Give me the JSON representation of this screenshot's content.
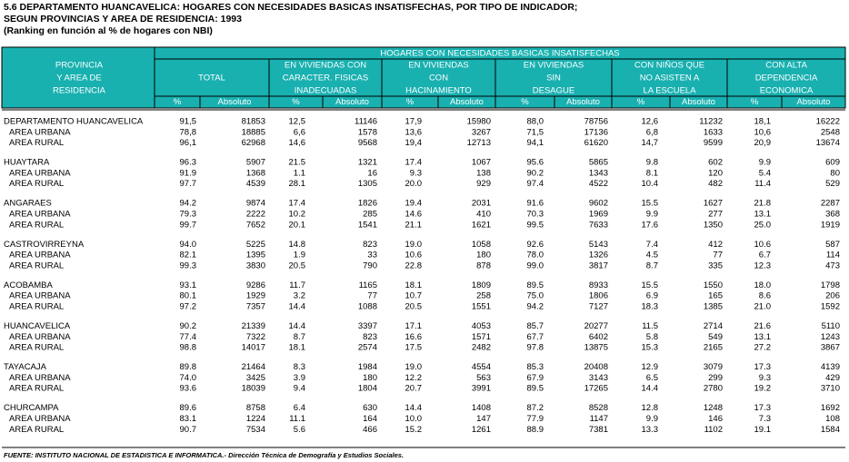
{
  "title": [
    "5.6  DEPARTAMENTO HUANCAVELICA:  HOGARES CON NECESIDADES BASICAS INSATISFECHAS, POR TIPO DE INDICADOR;",
    "SEGUN PROVINCIAS Y AREA DE RESIDENCIA: 1993",
    "(Ranking en función al % de hogares con NBI)"
  ],
  "header": {
    "stub": [
      "PROVINCIA",
      "Y AREA DE",
      "RESIDENCIA"
    ],
    "span": "HOGARES CON NECESIDADES BASICAS INSATISFECHAS",
    "groups": [
      [
        "TOTAL"
      ],
      [
        "EN VIVIENDAS CON",
        "CARACTER. FISICAS",
        "INADECUADAS"
      ],
      [
        "EN VIVIENDAS",
        "CON",
        "HACINAMIENTO"
      ],
      [
        "EN VIVIENDAS",
        "SIN",
        "DESAGUE"
      ],
      [
        "CON NIÑOS QUE",
        "NO ASISTEN A",
        "LA ESCUELA"
      ],
      [
        "CON ALTA",
        "DEPENDENCIA",
        "ECONOMICA"
      ]
    ],
    "sub": [
      "%",
      "Absoluto"
    ]
  },
  "table": {
    "sections": [
      {
        "rows": [
          {
            "label": "DEPARTAMENTO HUANCAVELICA",
            "cells": [
              "91,5",
              "81853",
              "12,5",
              "11146",
              "17,9",
              "15980",
              "88,0",
              "78756",
              "12,6",
              "11232",
              "18,1",
              "16222"
            ]
          },
          {
            "label": "AREA URBANA",
            "cells": [
              "78,8",
              "18885",
              "6,6",
              "1578",
              "13,6",
              "3267",
              "71,5",
              "17136",
              "6,8",
              "1633",
              "10,6",
              "2548"
            ]
          },
          {
            "label": "AREA RURAL",
            "cells": [
              "96,1",
              "62968",
              "14,6",
              "9568",
              "19,4",
              "12713",
              "94,1",
              "61620",
              "14,7",
              "9599",
              "20,9",
              "13674"
            ]
          }
        ]
      },
      {
        "rows": [
          {
            "label": "HUAYTARA",
            "cells": [
              "96.3",
              "5907",
              "21.5",
              "1321",
              "17.4",
              "1067",
              "95.6",
              "5865",
              "9.8",
              "602",
              "9.9",
              "609"
            ]
          },
          {
            "label": "AREA URBANA",
            "cells": [
              "91.9",
              "1368",
              "1.1",
              "16",
              "9.3",
              "138",
              "90.2",
              "1343",
              "8.1",
              "120",
              "5.4",
              "80"
            ]
          },
          {
            "label": "AREA RURAL",
            "cells": [
              "97.7",
              "4539",
              "28.1",
              "1305",
              "20.0",
              "929",
              "97.4",
              "4522",
              "10.4",
              "482",
              "11.4",
              "529"
            ]
          }
        ]
      },
      {
        "rows": [
          {
            "label": "ANGARAES",
            "cells": [
              "94.2",
              "9874",
              "17.4",
              "1826",
              "19.4",
              "2031",
              "91.6",
              "9602",
              "15.5",
              "1627",
              "21.8",
              "2287"
            ]
          },
          {
            "label": "AREA URBANA",
            "cells": [
              "79.3",
              "2222",
              "10.2",
              "285",
              "14.6",
              "410",
              "70.3",
              "1969",
              "9.9",
              "277",
              "13.1",
              "368"
            ]
          },
          {
            "label": "AREA RURAL",
            "cells": [
              "99.7",
              "7652",
              "20.1",
              "1541",
              "21.1",
              "1621",
              "99.5",
              "7633",
              "17.6",
              "1350",
              "25.0",
              "1919"
            ]
          }
        ]
      },
      {
        "rows": [
          {
            "label": "CASTROVIRREYNA",
            "cells": [
              "94.0",
              "5225",
              "14.8",
              "823",
              "19.0",
              "1058",
              "92.6",
              "5143",
              "7.4",
              "412",
              "10.6",
              "587"
            ]
          },
          {
            "label": "AREA URBANA",
            "cells": [
              "82.1",
              "1395",
              "1.9",
              "33",
              "10.6",
              "180",
              "78.0",
              "1326",
              "4.5",
              "77",
              "6.7",
              "114"
            ]
          },
          {
            "label": "AREA RURAL",
            "cells": [
              "99.3",
              "3830",
              "20.5",
              "790",
              "22.8",
              "878",
              "99.0",
              "3817",
              "8.7",
              "335",
              "12.3",
              "473"
            ]
          }
        ]
      },
      {
        "rows": [
          {
            "label": "ACOBAMBA",
            "cells": [
              "93.1",
              "9286",
              "11.7",
              "1165",
              "18.1",
              "1809",
              "89.5",
              "8933",
              "15.5",
              "1550",
              "18.0",
              "1798"
            ]
          },
          {
            "label": "AREA URBANA",
            "cells": [
              "80.1",
              "1929",
              "3.2",
              "77",
              "10.7",
              "258",
              "75.0",
              "1806",
              "6.9",
              "165",
              "8.6",
              "206"
            ]
          },
          {
            "label": "AREA RURAL",
            "cells": [
              "97.2",
              "7357",
              "14.4",
              "1088",
              "20.5",
              "1551",
              "94.2",
              "7127",
              "18.3",
              "1385",
              "21.0",
              "1592"
            ]
          }
        ]
      },
      {
        "rows": [
          {
            "label": "HUANCAVELICA",
            "cells": [
              "90.2",
              "21339",
              "14.4",
              "3397",
              "17.1",
              "4053",
              "85.7",
              "20277",
              "11.5",
              "2714",
              "21.6",
              "5110"
            ]
          },
          {
            "label": "AREA URBANA",
            "cells": [
              "77.4",
              "7322",
              "8.7",
              "823",
              "16.6",
              "1571",
              "67.7",
              "6402",
              "5.8",
              "549",
              "13.1",
              "1243"
            ]
          },
          {
            "label": "AREA RURAL",
            "cells": [
              "98.8",
              "14017",
              "18.1",
              "2574",
              "17.5",
              "2482",
              "97.8",
              "13875",
              "15.3",
              "2165",
              "27.2",
              "3867"
            ]
          }
        ]
      },
      {
        "rows": [
          {
            "label": "TAYACAJA",
            "cells": [
              "89.8",
              "21464",
              "8.3",
              "1984",
              "19.0",
              "4554",
              "85.3",
              "20408",
              "12.9",
              "3079",
              "17.3",
              "4139"
            ]
          },
          {
            "label": "AREA URBANA",
            "cells": [
              "74.0",
              "3425",
              "3.9",
              "180",
              "12.2",
              "563",
              "67.9",
              "3143",
              "6.5",
              "299",
              "9.3",
              "429"
            ]
          },
          {
            "label": "AREA RURAL",
            "cells": [
              "93.6",
              "18039",
              "9.4",
              "1804",
              "20.7",
              "3991",
              "89.5",
              "17265",
              "14.4",
              "2780",
              "19.2",
              "3710"
            ]
          }
        ]
      },
      {
        "rows": [
          {
            "label": "CHURCAMPA",
            "cells": [
              "89.6",
              "8758",
              "6.4",
              "630",
              "14.4",
              "1408",
              "87.2",
              "8528",
              "12.8",
              "1248",
              "17.3",
              "1692"
            ]
          },
          {
            "label": "AREA URBANA",
            "cells": [
              "83.1",
              "1224",
              "11.1",
              "164",
              "10.0",
              "147",
              "77.9",
              "1147",
              "9.9",
              "146",
              "7.3",
              "108"
            ]
          },
          {
            "label": "AREA RURAL",
            "cells": [
              "90.7",
              "7534",
              "5.6",
              "466",
              "15.2",
              "1261",
              "88.9",
              "7381",
              "13.3",
              "1102",
              "19.1",
              "1584"
            ]
          }
        ]
      }
    ]
  },
  "footer": "FUENTE: INSTITUTO NACIONAL DE ESTADISTICA E INFORMATICA.- Dirección Técnica de Demografía y Estudios Sociales."
}
